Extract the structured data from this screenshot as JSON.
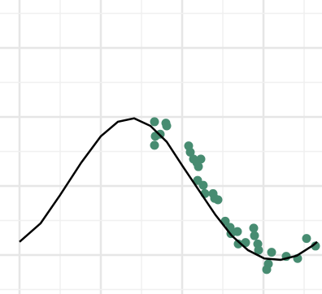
{
  "chart_data": {
    "type": "scatter",
    "xlim": [
      -0.24,
      3.72
    ],
    "ylim": [
      -1.565,
      2.694
    ],
    "xticks": [
      0,
      0.5,
      1,
      1.5,
      2,
      2.5,
      3,
      3.5
    ],
    "yticks": [
      -1.5,
      -1,
      -0.5,
      0,
      0.5,
      1,
      1.5,
      2,
      2.5
    ],
    "grid": true,
    "points": {
      "color": "#478c71",
      "x": [
        1.66,
        1.67,
        1.66,
        1.73,
        1.8,
        1.81,
        2.08,
        2.1,
        2.14,
        2.18,
        2.23,
        2.2,
        2.19,
        2.26,
        2.28,
        2.38,
        2.4,
        2.44,
        2.53,
        2.59,
        2.6,
        2.68,
        2.69,
        2.78,
        2.88,
        2.89,
        2.93,
        2.94,
        3.06,
        3.04,
        3.1,
        3.28,
        3.42,
        3.53,
        3.64
      ],
      "y": [
        0.93,
        0.72,
        0.59,
        0.75,
        0.91,
        0.87,
        0.58,
        0.49,
        0.39,
        0.34,
        0.39,
        0.28,
        0.08,
        0.01,
        -0.11,
        -0.11,
        -0.18,
        -0.2,
        -0.51,
        -0.6,
        -0.69,
        -0.66,
        -0.84,
        -0.82,
        -0.61,
        -0.72,
        -0.84,
        -0.93,
        -1.13,
        -1.21,
        -0.96,
        -1.02,
        -1.05,
        -0.76,
        -0.87
      ]
    },
    "curve": {
      "color": "#000000",
      "x": [
        0,
        0.26,
        0.5,
        0.76,
        1.0,
        1.21,
        1.41,
        1.61,
        1.81,
        2.01,
        2.21,
        2.41,
        2.61,
        2.81,
        3.01,
        3.21,
        3.41,
        3.61,
        3.66
      ],
      "y": [
        -0.81,
        -0.54,
        -0.13,
        0.34,
        0.72,
        0.93,
        0.98,
        0.87,
        0.64,
        0.28,
        -0.07,
        -0.42,
        -0.72,
        -0.93,
        -1.05,
        -1.07,
        -1.01,
        -0.86,
        -0.81
      ]
    }
  }
}
